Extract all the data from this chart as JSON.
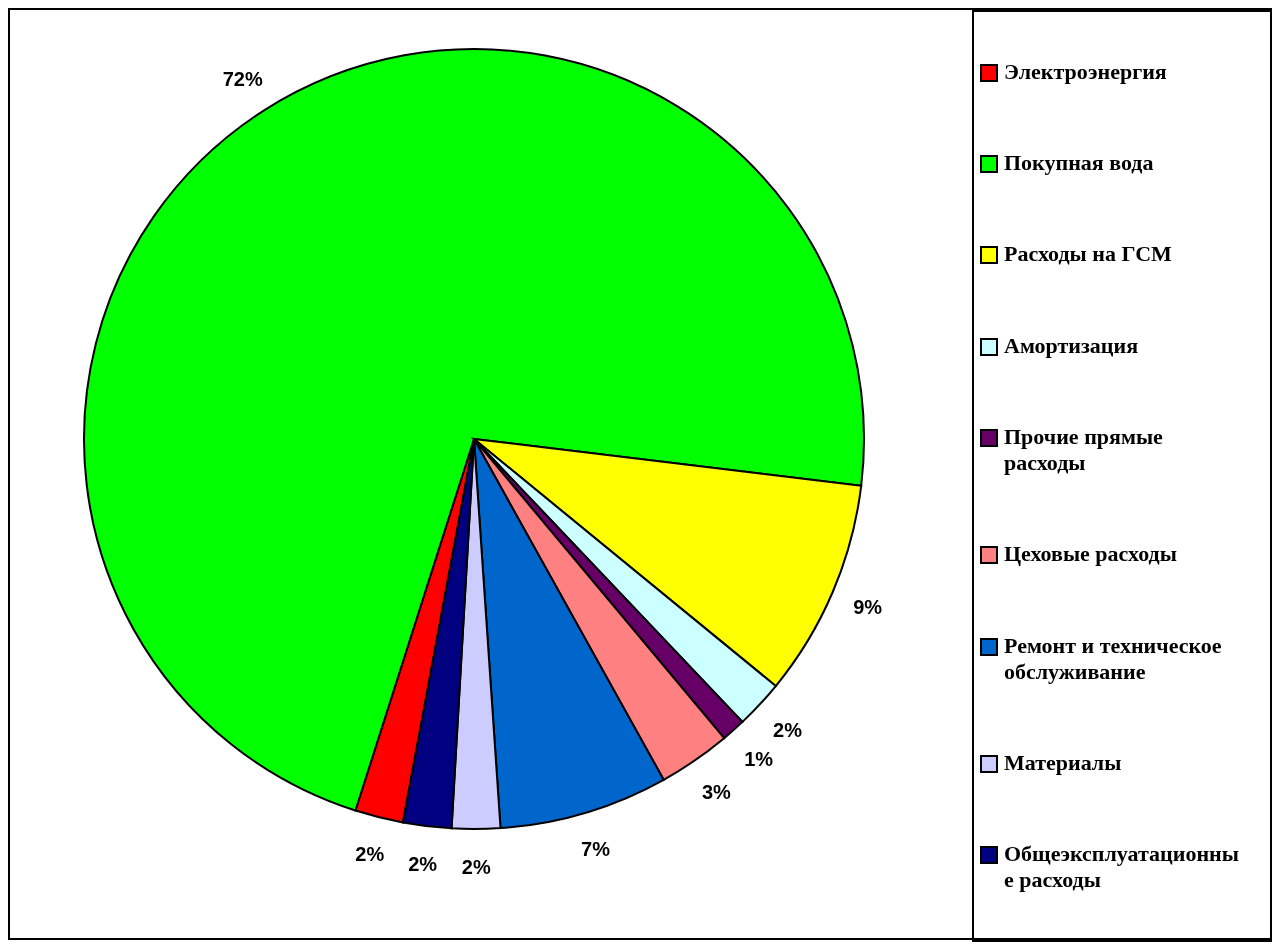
{
  "chart_data": {
    "type": "pie",
    "categories": [
      "Электроэнергия",
      "Покупная вода",
      "Расходы на ГСМ",
      "Амортизация",
      "Прочие прямые расходы",
      "Цеховые расходы",
      "Ремонт и техническое обслуживание",
      "Материалы",
      "Общеэксплуатационные расходы"
    ],
    "values": [
      2,
      72,
      9,
      2,
      1,
      3,
      7,
      2,
      2
    ],
    "value_labels": [
      "2%",
      "72%",
      "9%",
      "2%",
      "1%",
      "3%",
      "7%",
      "2%",
      "2%"
    ],
    "colors": [
      "#ff0000",
      "#00ff00",
      "#ffff00",
      "#ccffff",
      "#660066",
      "#ff8080",
      "#0066cc",
      "#ccccff",
      "#000080"
    ],
    "legend": "right"
  }
}
